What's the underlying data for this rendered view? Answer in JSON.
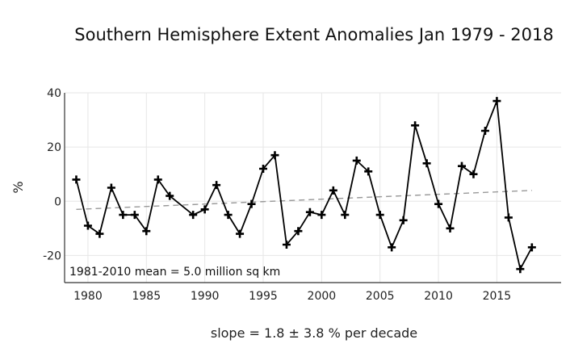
{
  "chart_data": {
    "type": "line",
    "title": "Southern Hemisphere Extent Anomalies Jan 1979 - 2018",
    "ylabel": "%",
    "xlabel": "",
    "annotation": "1981-2010 mean = 5.0 million sq km",
    "footer": "slope = 1.8 ± 3.8 % per decade",
    "xlim": [
      1978,
      2020.5
    ],
    "ylim": [
      -30,
      40
    ],
    "xticks": [
      1980,
      1985,
      1990,
      1995,
      2000,
      2005,
      2010,
      2015
    ],
    "yticks": [
      -20,
      0,
      20,
      40
    ],
    "grid": true,
    "series": [
      {
        "x": [
          1979,
          1980,
          1981,
          1982,
          1983,
          1984,
          1985,
          1986,
          1987,
          1989,
          1990,
          1991,
          1992,
          1993,
          1994,
          1995,
          1996,
          1997,
          1998,
          1999,
          2000,
          2001,
          2002,
          2003,
          2004,
          2005,
          2006,
          2007,
          2008,
          2009,
          2010,
          2011,
          2012,
          2013,
          2014,
          2015,
          2016,
          2017,
          2018
        ],
        "values": [
          8,
          -9,
          -12,
          5,
          -5,
          -5,
          -11,
          8,
          2,
          -5,
          -3,
          6,
          -5,
          -12,
          -1,
          12,
          17,
          -16,
          -11,
          -4,
          -5,
          4,
          -5,
          15,
          11,
          -5,
          -17,
          -7,
          28,
          14,
          -1,
          -10,
          13,
          10,
          26,
          37,
          -6,
          -25,
          -17
        ],
        "color": "#000000"
      }
    ],
    "trend": {
      "x": [
        1979,
        2018
      ],
      "values": [
        -3,
        4
      ],
      "color": "#999999"
    }
  }
}
